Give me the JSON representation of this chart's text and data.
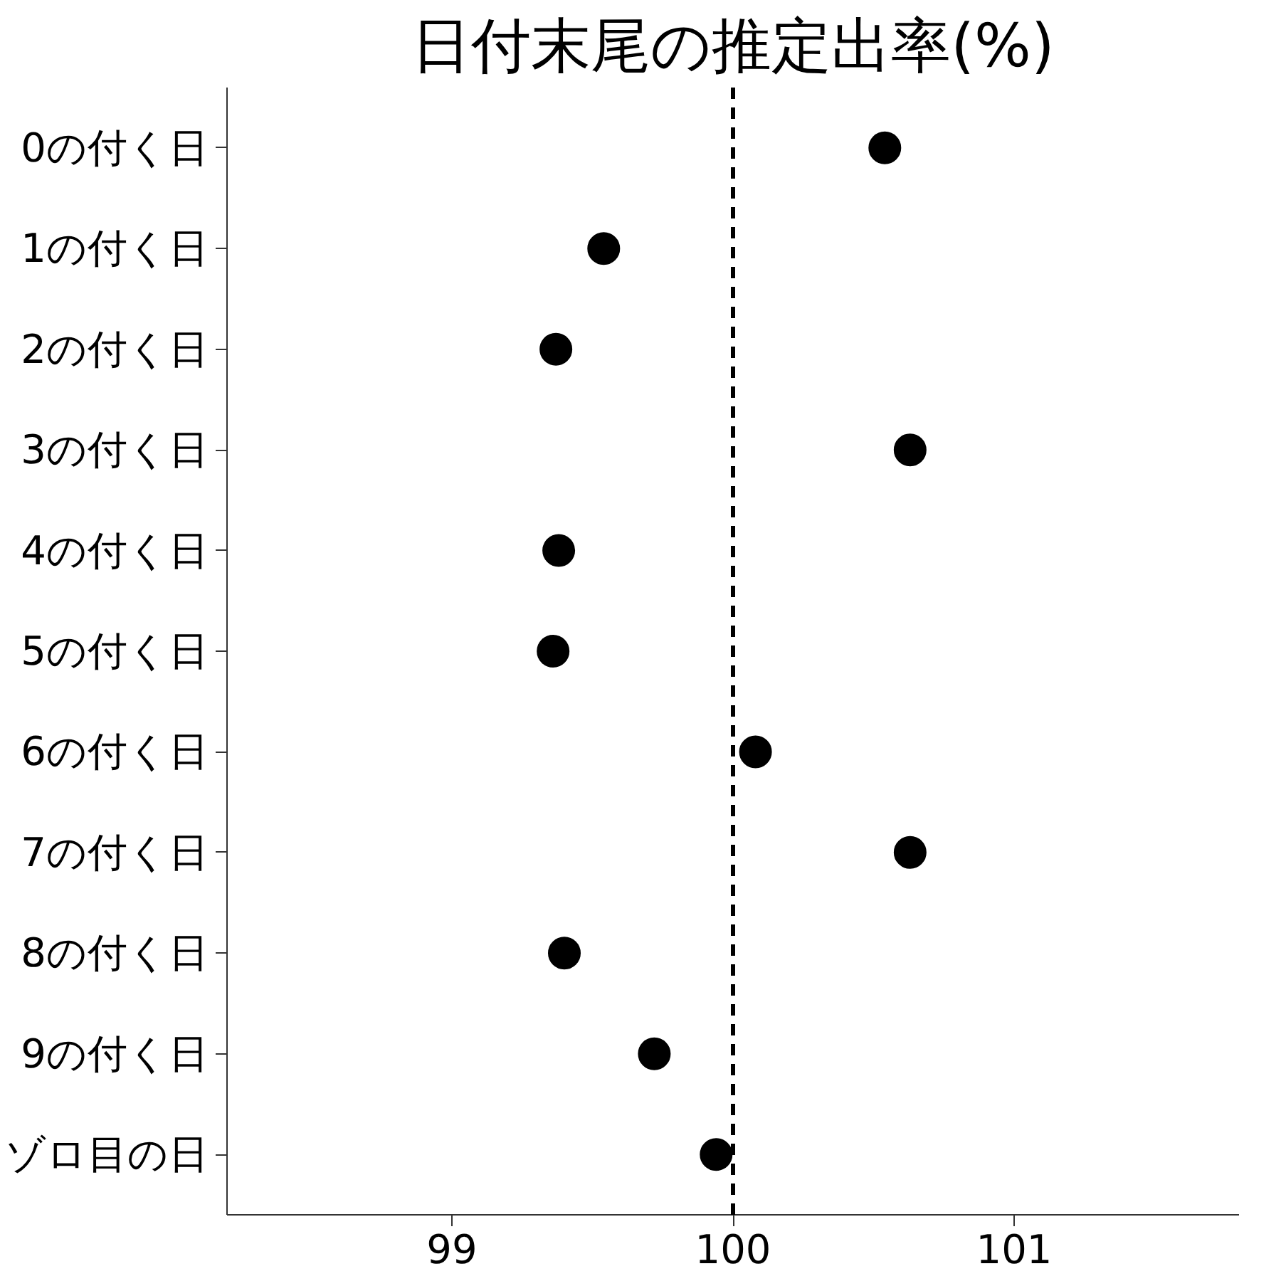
{
  "chart_data": {
    "type": "scatter",
    "title": "日付末尾の推定出率(%)",
    "categories": [
      "0の付く日",
      "1の付く日",
      "2の付く日",
      "3の付く日",
      "4の付く日",
      "5の付く日",
      "6の付く日",
      "7の付く日",
      "8の付く日",
      "9の付く日",
      "ゾロ目の日"
    ],
    "orientation": "horizontal",
    "values": [
      100.54,
      99.54,
      99.37,
      100.63,
      99.38,
      99.36,
      100.08,
      100.63,
      99.4,
      99.72,
      99.94
    ],
    "color": "#000000",
    "marker": "circle",
    "xlim": [
      98.2,
      101.8
    ],
    "xticks": [
      99,
      100,
      101
    ],
    "ref_lines": [
      {
        "axis": "x",
        "value": 100,
        "color": "#000000",
        "line_style": "dashed"
      }
    ],
    "grid": false
  }
}
